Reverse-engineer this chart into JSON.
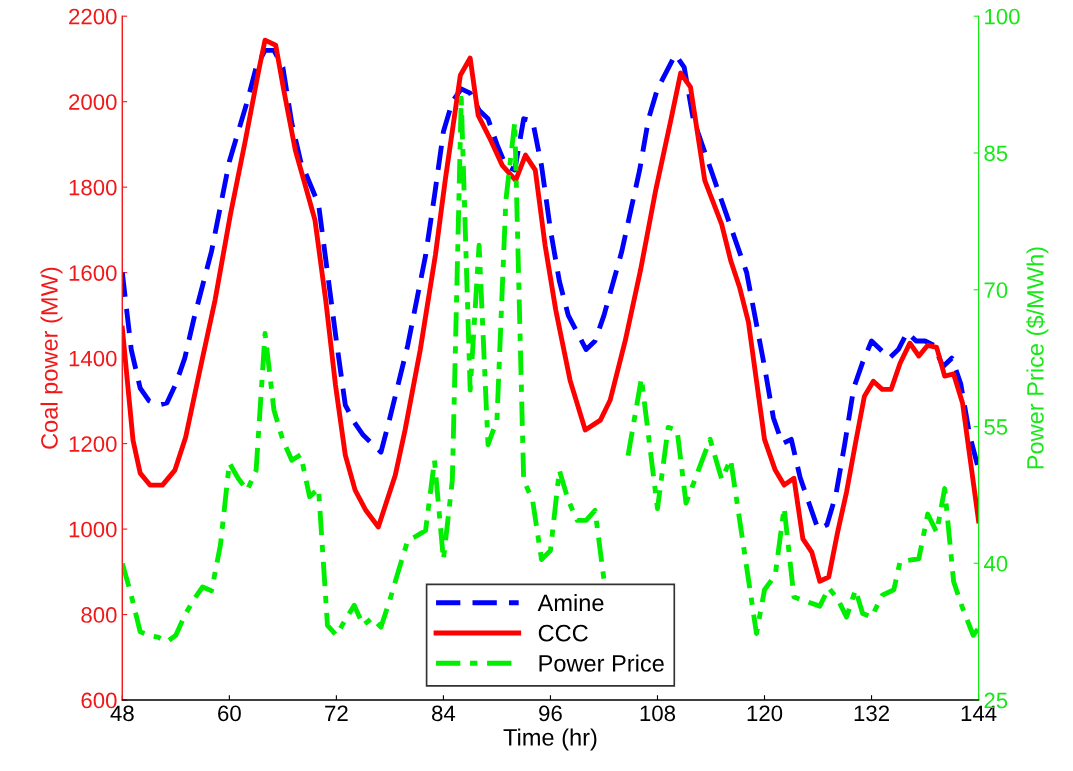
{
  "chart_data": {
    "type": "line",
    "xlabel": "Time (hr)",
    "ylabel": "Coal power (MW)",
    "y2label": "Power Price ($/MWh)",
    "xlim": [
      48,
      144
    ],
    "xticks": [
      48,
      60,
      72,
      84,
      96,
      108,
      120,
      132,
      144
    ],
    "ylim": [
      600,
      2200
    ],
    "yticks": [
      600,
      800,
      1000,
      1200,
      1400,
      1600,
      1800,
      2000,
      2200
    ],
    "y2lim": [
      25,
      100
    ],
    "y2ticks": [
      25,
      40,
      55,
      70,
      85,
      100
    ],
    "grid": false,
    "legend": "bottom",
    "marker": "none",
    "series": [
      {
        "name": "Amine",
        "color": "#0000ff",
        "line_style": "dashed",
        "x": [
          48,
          49,
          50,
          51,
          52,
          53,
          54,
          55,
          56,
          58,
          60,
          62,
          63,
          64,
          65,
          66,
          67,
          68,
          70,
          71,
          72,
          73,
          74,
          75,
          76,
          77,
          78,
          80,
          82,
          83,
          84,
          85,
          86,
          87,
          88,
          89,
          90,
          91,
          92,
          93,
          94,
          95,
          96,
          97,
          98,
          99,
          100,
          101,
          102,
          104,
          106,
          107,
          108,
          110,
          111,
          112,
          114,
          116,
          118,
          119,
          120,
          121,
          122,
          123,
          124,
          125,
          126,
          127,
          128,
          129,
          130,
          131,
          132,
          133,
          134,
          135,
          136,
          137,
          138,
          139,
          140,
          141,
          142,
          143,
          144
        ],
        "values": [
          1600,
          1420,
          1330,
          1300,
          1290,
          1295,
          1340,
          1400,
          1490,
          1650,
          1860,
          2000,
          2080,
          2120,
          2120,
          2080,
          1950,
          1860,
          1760,
          1600,
          1440,
          1290,
          1250,
          1220,
          1200,
          1180,
          1260,
          1430,
          1640,
          1780,
          1930,
          2000,
          2030,
          2020,
          1980,
          1960,
          1900,
          1850,
          1840,
          1960,
          1955,
          1850,
          1700,
          1580,
          1500,
          1460,
          1420,
          1440,
          1500,
          1650,
          1840,
          1960,
          2030,
          2110,
          2080,
          1960,
          1840,
          1720,
          1600,
          1490,
          1380,
          1260,
          1200,
          1210,
          1120,
          1060,
          1000,
          1010,
          1080,
          1200,
          1330,
          1390,
          1440,
          1420,
          1400,
          1420,
          1460,
          1440,
          1440,
          1430,
          1380,
          1400,
          1340,
          1220,
          1140
        ]
      },
      {
        "name": "CCC",
        "color": "#ff0000",
        "line_style": "solid",
        "x": [
          48,
          49.2,
          50,
          51.1,
          52.5,
          53.9,
          55.1,
          56.7,
          58.4,
          60.1,
          61.8,
          63.3,
          64,
          65.2,
          66.1,
          67.4,
          68.5,
          69.6,
          70.8,
          71.9,
          73,
          74.1,
          75.3,
          76.7,
          78.6,
          79.7,
          81.4,
          83.1,
          84.2,
          85.9,
          87,
          87.9,
          89.3,
          90.6,
          92.1,
          93.2,
          94.3,
          95.4,
          96.6,
          98.2,
          99.9,
          101.6,
          102.7,
          104.4,
          106.1,
          107.8,
          109.5,
          110.6,
          111.7,
          113.3,
          115.2,
          116.2,
          117.2,
          118.2,
          120,
          121.2,
          122.2,
          123.3,
          124.3,
          125.3,
          126.2,
          127.2,
          128.2,
          129.2,
          130.2,
          131.2,
          132.2,
          133.2,
          134.2,
          135.2,
          136.3,
          137.3,
          138.3,
          139.3,
          140.2,
          141.2,
          142.2,
          144
        ],
        "values": [
          1470,
          1208,
          1131,
          1103,
          1103,
          1138,
          1215,
          1372,
          1536,
          1734,
          1910,
          2074,
          2144,
          2132,
          2027,
          1886,
          1805,
          1723,
          1536,
          1337,
          1173,
          1091,
          1044,
          1005,
          1126,
          1232,
          1419,
          1641,
          1816,
          2062,
          2102,
          1968,
          1910,
          1851,
          1816,
          1875,
          1840,
          1664,
          1512,
          1348,
          1232,
          1255,
          1302,
          1442,
          1606,
          1793,
          1957,
          2067,
          2034,
          1816,
          1713,
          1629,
          1566,
          1484,
          1210,
          1138,
          1103,
          1119,
          977,
          946,
          878,
          888,
          993,
          1087,
          1201,
          1311,
          1346,
          1327,
          1327,
          1388,
          1435,
          1405,
          1430,
          1425,
          1358,
          1363,
          1295,
          1019
        ]
      },
      {
        "name": "Power Price",
        "color": "#00ee00",
        "line_style": "dashdot",
        "axis": "y2",
        "x": [
          48,
          49,
          50,
          51,
          52,
          53,
          54,
          55,
          56,
          57,
          58,
          59,
          60,
          61,
          62,
          63,
          64,
          65,
          66,
          67,
          68,
          69,
          70,
          71,
          72,
          73,
          74,
          75,
          76,
          77,
          78,
          79,
          80,
          81,
          82,
          83,
          84,
          85,
          86,
          87,
          88,
          89,
          90,
          91,
          92,
          93,
          94,
          95,
          96,
          97,
          98,
          99,
          100,
          101,
          102,
          103,
          104.7,
          106.2,
          108,
          109.2,
          110.2,
          111.2,
          113.9,
          115.2,
          116.2,
          119.1,
          120,
          121.2,
          122.2,
          123.3,
          126.2,
          127.2,
          128.2,
          129.2,
          130.2,
          131,
          132,
          133.2,
          134.5,
          135.2,
          137.3,
          138.3,
          139.3,
          140.2,
          141.2,
          142.2,
          143.4,
          144
        ],
        "values": [
          40,
          36.5,
          32.5,
          32.1,
          31.9,
          31.4,
          32.1,
          34.3,
          36,
          37.4,
          37,
          42,
          51,
          49.3,
          48,
          50.2,
          65.2,
          56.8,
          53.5,
          51.3,
          51.9,
          47.3,
          48.2,
          33.2,
          32.1,
          33.8,
          35.4,
          33.2,
          34,
          33,
          36,
          39.3,
          42.5,
          43,
          43.6,
          51.3,
          40.4,
          49.1,
          91,
          59,
          74.9,
          53,
          55.7,
          79.8,
          88.4,
          49.1,
          46.9,
          40.4,
          41.4,
          50.2,
          46.9,
          44.7,
          44.7,
          45.8,
          38.2,
          null,
          51.8,
          60.3,
          46,
          54.9,
          54.6,
          46.6,
          53.6,
          49.2,
          51.4,
          32.3,
          37.1,
          38.7,
          46.1,
          36.3,
          35.3,
          37.3,
          36.1,
          34.1,
          37.1,
          34.5,
          34.1,
          36.5,
          37.1,
          40.2,
          40.5,
          45.4,
          43.4,
          48.2,
          38,
          35.1,
          32.1,
          32.9
        ]
      }
    ]
  }
}
